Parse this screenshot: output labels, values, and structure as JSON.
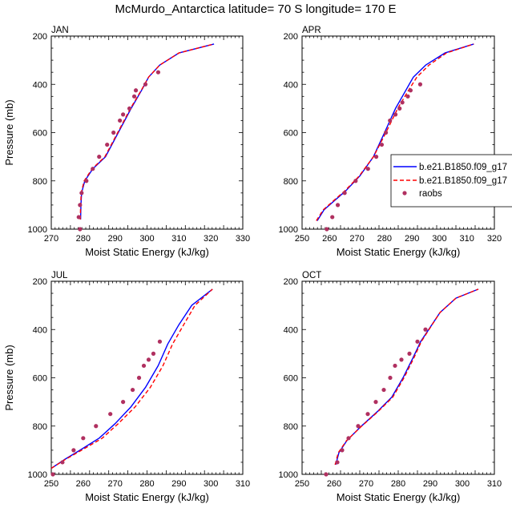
{
  "suptitle": "McMurdo_Antarctica  latitude= 70 S longitude= 170 E",
  "legend": {
    "entries": [
      {
        "label": "b.e21.B1850.f09_g17",
        "color": "#0000ff",
        "style": "solid"
      },
      {
        "label": "b.e21.B1850.f09_g17",
        "color": "#ff0000",
        "style": "dashed"
      },
      {
        "label": "raobs",
        "color": "#b03060",
        "style": "marker"
      }
    ]
  },
  "colors": {
    "model1": "#0000ff",
    "model2": "#ff0000",
    "obs": "#b03060"
  },
  "chart_data": [
    {
      "type": "line",
      "panel": "JAN",
      "title": "JAN",
      "xlabel": "Moist Static Energy (kJ/kg)",
      "ylabel": "Pressure (mb)",
      "xlim": [
        270,
        330
      ],
      "ylim": [
        1000,
        200
      ],
      "xticks": [
        270,
        280,
        290,
        300,
        310,
        320,
        330
      ],
      "yticks": [
        1000,
        800,
        600,
        400,
        200
      ],
      "series": [
        {
          "name": "b.e21.B1850.f09_g17",
          "style": "solid",
          "x": [
            279.2,
            279.3,
            279.5,
            280.5,
            283,
            287,
            291,
            295,
            298.5,
            300.5,
            304,
            310,
            321
          ],
          "y": [
            960,
            900,
            850,
            800,
            750,
            700,
            600,
            500,
            420,
            370,
            320,
            270,
            233
          ]
        },
        {
          "name": "b.e21.B1850.f09_g17",
          "style": "dashed",
          "x": [
            279.1,
            279.2,
            279.4,
            280.3,
            282.8,
            286.8,
            290.8,
            294.8,
            298.4,
            300.5,
            304,
            310,
            321
          ],
          "y": [
            960,
            900,
            850,
            800,
            750,
            700,
            600,
            500,
            420,
            370,
            320,
            270,
            233
          ]
        },
        {
          "name": "raobs",
          "style": "marker",
          "x": [
            279,
            278.6,
            279,
            279.5,
            281,
            283,
            285,
            287.5,
            289.5,
            291.5,
            292.5,
            294.5,
            296,
            296.5,
            299.5,
            303.5
          ],
          "y": [
            1000,
            950,
            900,
            850,
            800,
            750,
            700,
            650,
            600,
            550,
            525,
            500,
            450,
            425,
            400,
            350
          ]
        }
      ]
    },
    {
      "type": "line",
      "panel": "APR",
      "title": "APR",
      "xlabel": "Moist Static Energy (kJ/kg)",
      "ylabel": "",
      "xlim": [
        250,
        320
      ],
      "ylim": [
        1000,
        200
      ],
      "xticks": [
        250,
        260,
        270,
        280,
        290,
        300,
        310,
        320
      ],
      "yticks": [
        1000,
        800,
        600,
        400,
        200
      ],
      "series": [
        {
          "name": "b.e21.B1850.f09_g17",
          "style": "solid",
          "x": [
            255.5,
            258,
            262,
            266,
            271,
            276,
            280,
            284,
            288,
            290.5,
            295,
            302,
            312.5
          ],
          "y": [
            965,
            920,
            880,
            840,
            780,
            700,
            600,
            500,
            420,
            370,
            320,
            270,
            233
          ]
        },
        {
          "name": "b.e21.B1850.f09_g17",
          "style": "dashed",
          "x": [
            255.2,
            257.7,
            261.7,
            265.7,
            270.8,
            276,
            280.5,
            284.8,
            289,
            291.8,
            296.2,
            302.6,
            312.5
          ],
          "y": [
            965,
            920,
            880,
            840,
            780,
            700,
            600,
            500,
            420,
            370,
            320,
            270,
            233
          ]
        },
        {
          "name": "raobs",
          "style": "marker",
          "x": [
            259,
            261,
            263,
            265.5,
            269.5,
            274,
            277,
            279,
            280.5,
            282,
            284,
            285.5,
            286.5,
            288.5,
            289.5,
            293
          ],
          "y": [
            1000,
            950,
            900,
            850,
            800,
            750,
            700,
            650,
            600,
            550,
            525,
            500,
            475,
            450,
            425,
            400
          ]
        }
      ]
    },
    {
      "type": "line",
      "panel": "JUL",
      "title": "JUL",
      "xlabel": "Moist Static Energy (kJ/kg)",
      "ylabel": "Pressure (mb)",
      "xlim": [
        250,
        310
      ],
      "ylim": [
        1000,
        200
      ],
      "xticks": [
        250,
        260,
        270,
        280,
        290,
        300,
        310
      ],
      "yticks": [
        1000,
        800,
        600,
        400,
        200
      ],
      "series": [
        {
          "name": "b.e21.B1850.f09_g17",
          "style": "solid",
          "x": [
            250,
            254,
            259,
            265,
            270,
            275,
            279.5,
            283.5,
            286.5,
            290,
            294,
            300.5
          ],
          "y": [
            975,
            940,
            900,
            850,
            790,
            720,
            640,
            550,
            460,
            380,
            300,
            233
          ]
        },
        {
          "name": "b.e21.B1850.f09_g17",
          "style": "dashed",
          "x": [
            250,
            254.2,
            259.5,
            266,
            271,
            276.3,
            281,
            285,
            288,
            291.5,
            295,
            300.5
          ],
          "y": [
            975,
            940,
            900,
            850,
            790,
            720,
            640,
            550,
            460,
            380,
            300,
            233
          ]
        },
        {
          "name": "raobs",
          "style": "marker",
          "x": [
            250.5,
            253.5,
            257,
            260,
            264,
            268.5,
            272.5,
            275.5,
            277.5,
            279,
            280.5,
            282,
            284
          ],
          "y": [
            1000,
            950,
            900,
            850,
            800,
            750,
            700,
            650,
            600,
            550,
            525,
            500,
            450
          ]
        }
      ]
    },
    {
      "type": "line",
      "panel": "OCT",
      "title": "OCT",
      "xlabel": "Moist Static Energy (kJ/kg)",
      "ylabel": "",
      "xlim": [
        250,
        310
      ],
      "ylim": [
        1000,
        200
      ],
      "xticks": [
        250,
        260,
        270,
        280,
        290,
        300,
        310
      ],
      "yticks": [
        1000,
        800,
        600,
        400,
        200
      ],
      "series": [
        {
          "name": "b.e21.B1850.f09_g17",
          "style": "solid",
          "x": [
            260.5,
            261.5,
            264,
            268.5,
            273.5,
            278,
            281.5,
            284.5,
            287,
            289.5,
            293,
            298,
            305
          ],
          "y": [
            960,
            910,
            860,
            800,
            740,
            680,
            600,
            520,
            450,
            400,
            330,
            270,
            233
          ]
        },
        {
          "name": "b.e21.B1850.f09_g17",
          "style": "dashed",
          "x": [
            260.3,
            261.3,
            263.9,
            268.6,
            273.7,
            278.3,
            281.8,
            284.8,
            287.2,
            289.6,
            293,
            298,
            305
          ],
          "y": [
            960,
            910,
            860,
            800,
            740,
            680,
            600,
            520,
            450,
            400,
            330,
            270,
            233
          ]
        },
        {
          "name": "raobs",
          "style": "marker",
          "x": [
            257.5,
            261,
            262.5,
            264.5,
            267.5,
            270.5,
            273,
            275.5,
            277.5,
            279,
            281,
            283.5,
            286,
            288.5
          ],
          "y": [
            1000,
            950,
            900,
            850,
            800,
            750,
            700,
            650,
            600,
            550,
            525,
            500,
            450,
            400
          ]
        }
      ]
    }
  ]
}
